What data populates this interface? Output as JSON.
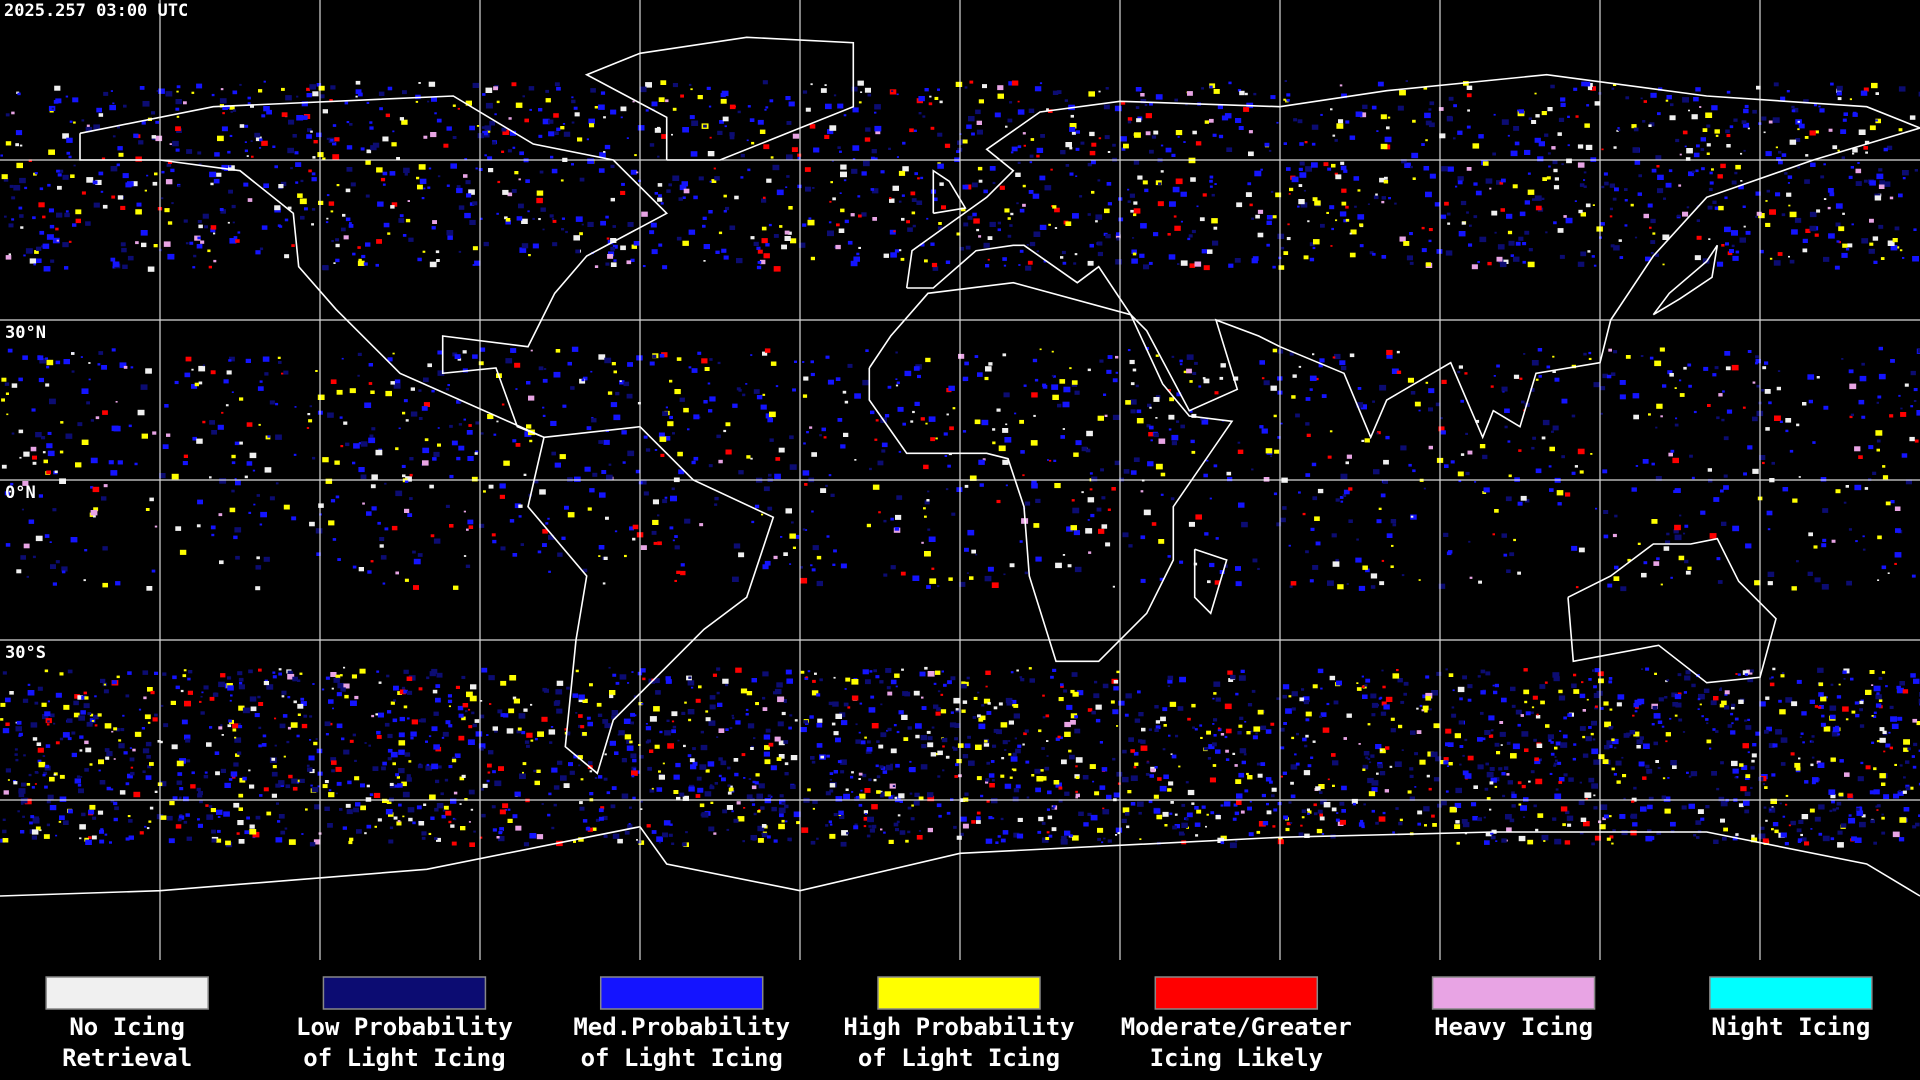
{
  "header": {
    "timestamp": "2025.257 03:00 UTC"
  },
  "map": {
    "lat_labels": [
      {
        "lat": 30,
        "label": "30°N"
      },
      {
        "lat": 0,
        "label": "0°N"
      },
      {
        "lat": -30,
        "label": "30°S"
      }
    ]
  },
  "legend": {
    "items": [
      {
        "color": "#f0f0f0",
        "label": [
          "No Icing",
          "Retrieval"
        ]
      },
      {
        "color": "#0c0c72",
        "label": [
          "Low Probability",
          "of Light Icing"
        ]
      },
      {
        "color": "#1414ff",
        "label": [
          "Med.Probability",
          "of Light Icing"
        ]
      },
      {
        "color": "#ffff00",
        "label": [
          "High Probability",
          "of Light Icing"
        ]
      },
      {
        "color": "#ff0000",
        "label": [
          "Moderate/Greater",
          "Icing Likely"
        ]
      },
      {
        "color": "#e8a4e4",
        "label": [
          "Heavy Icing"
        ]
      },
      {
        "color": "#00ffff",
        "label": [
          "Night Icing"
        ]
      }
    ]
  }
}
